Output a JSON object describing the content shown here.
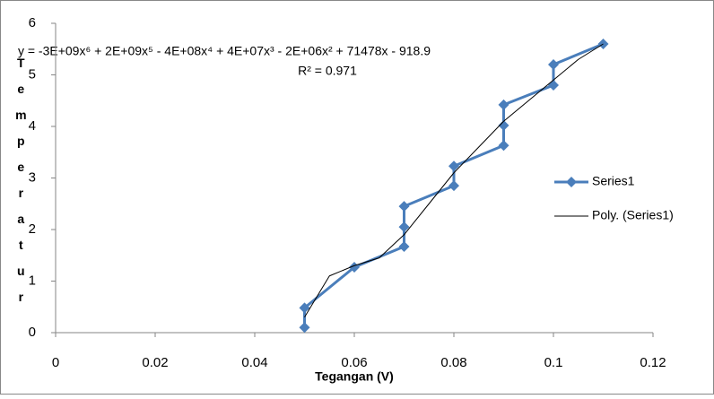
{
  "chart_data": {
    "type": "scatter",
    "equation": "y = -3E+09x⁶ + 2E+09x⁵ - 4E+08x⁴ + 4E+07x³ - 2E+06x² + 71478x - 918.9",
    "r_squared": "R² = 0.971",
    "x_label": "Tegangan (V)",
    "y_label": "Temperatur",
    "xlim": [
      0,
      0.12
    ],
    "xticks": [
      0,
      0.02,
      0.04,
      0.06,
      0.08,
      0.1,
      0.12
    ],
    "ylim": [
      0,
      6
    ],
    "yticks": [
      0,
      1,
      2,
      3,
      4,
      5,
      6
    ],
    "grid": false,
    "legend": "right",
    "series": [
      {
        "name": "Series1",
        "color": "#4a7ebb",
        "marker": "diamond",
        "x": [
          0.05,
          0.05,
          0.06,
          0.07,
          0.07,
          0.07,
          0.08,
          0.08,
          0.09,
          0.09,
          0.09,
          0.1,
          0.1,
          0.11
        ],
        "values": [
          0.1,
          0.48,
          1.27,
          1.67,
          2.05,
          2.45,
          2.85,
          3.23,
          3.63,
          4.02,
          4.42,
          4.8,
          5.2,
          5.6
        ]
      },
      {
        "name": "Poly. (Series1)",
        "color": "#000000",
        "marker": "none",
        "x": [
          0.05,
          0.055,
          0.06,
          0.065,
          0.07,
          0.075,
          0.08,
          0.085,
          0.09,
          0.095,
          0.1,
          0.105,
          0.11
        ],
        "values": [
          0.3,
          1.1,
          1.3,
          1.45,
          1.9,
          2.5,
          3.1,
          3.6,
          4.1,
          4.5,
          4.9,
          5.3,
          5.6
        ]
      }
    ]
  }
}
